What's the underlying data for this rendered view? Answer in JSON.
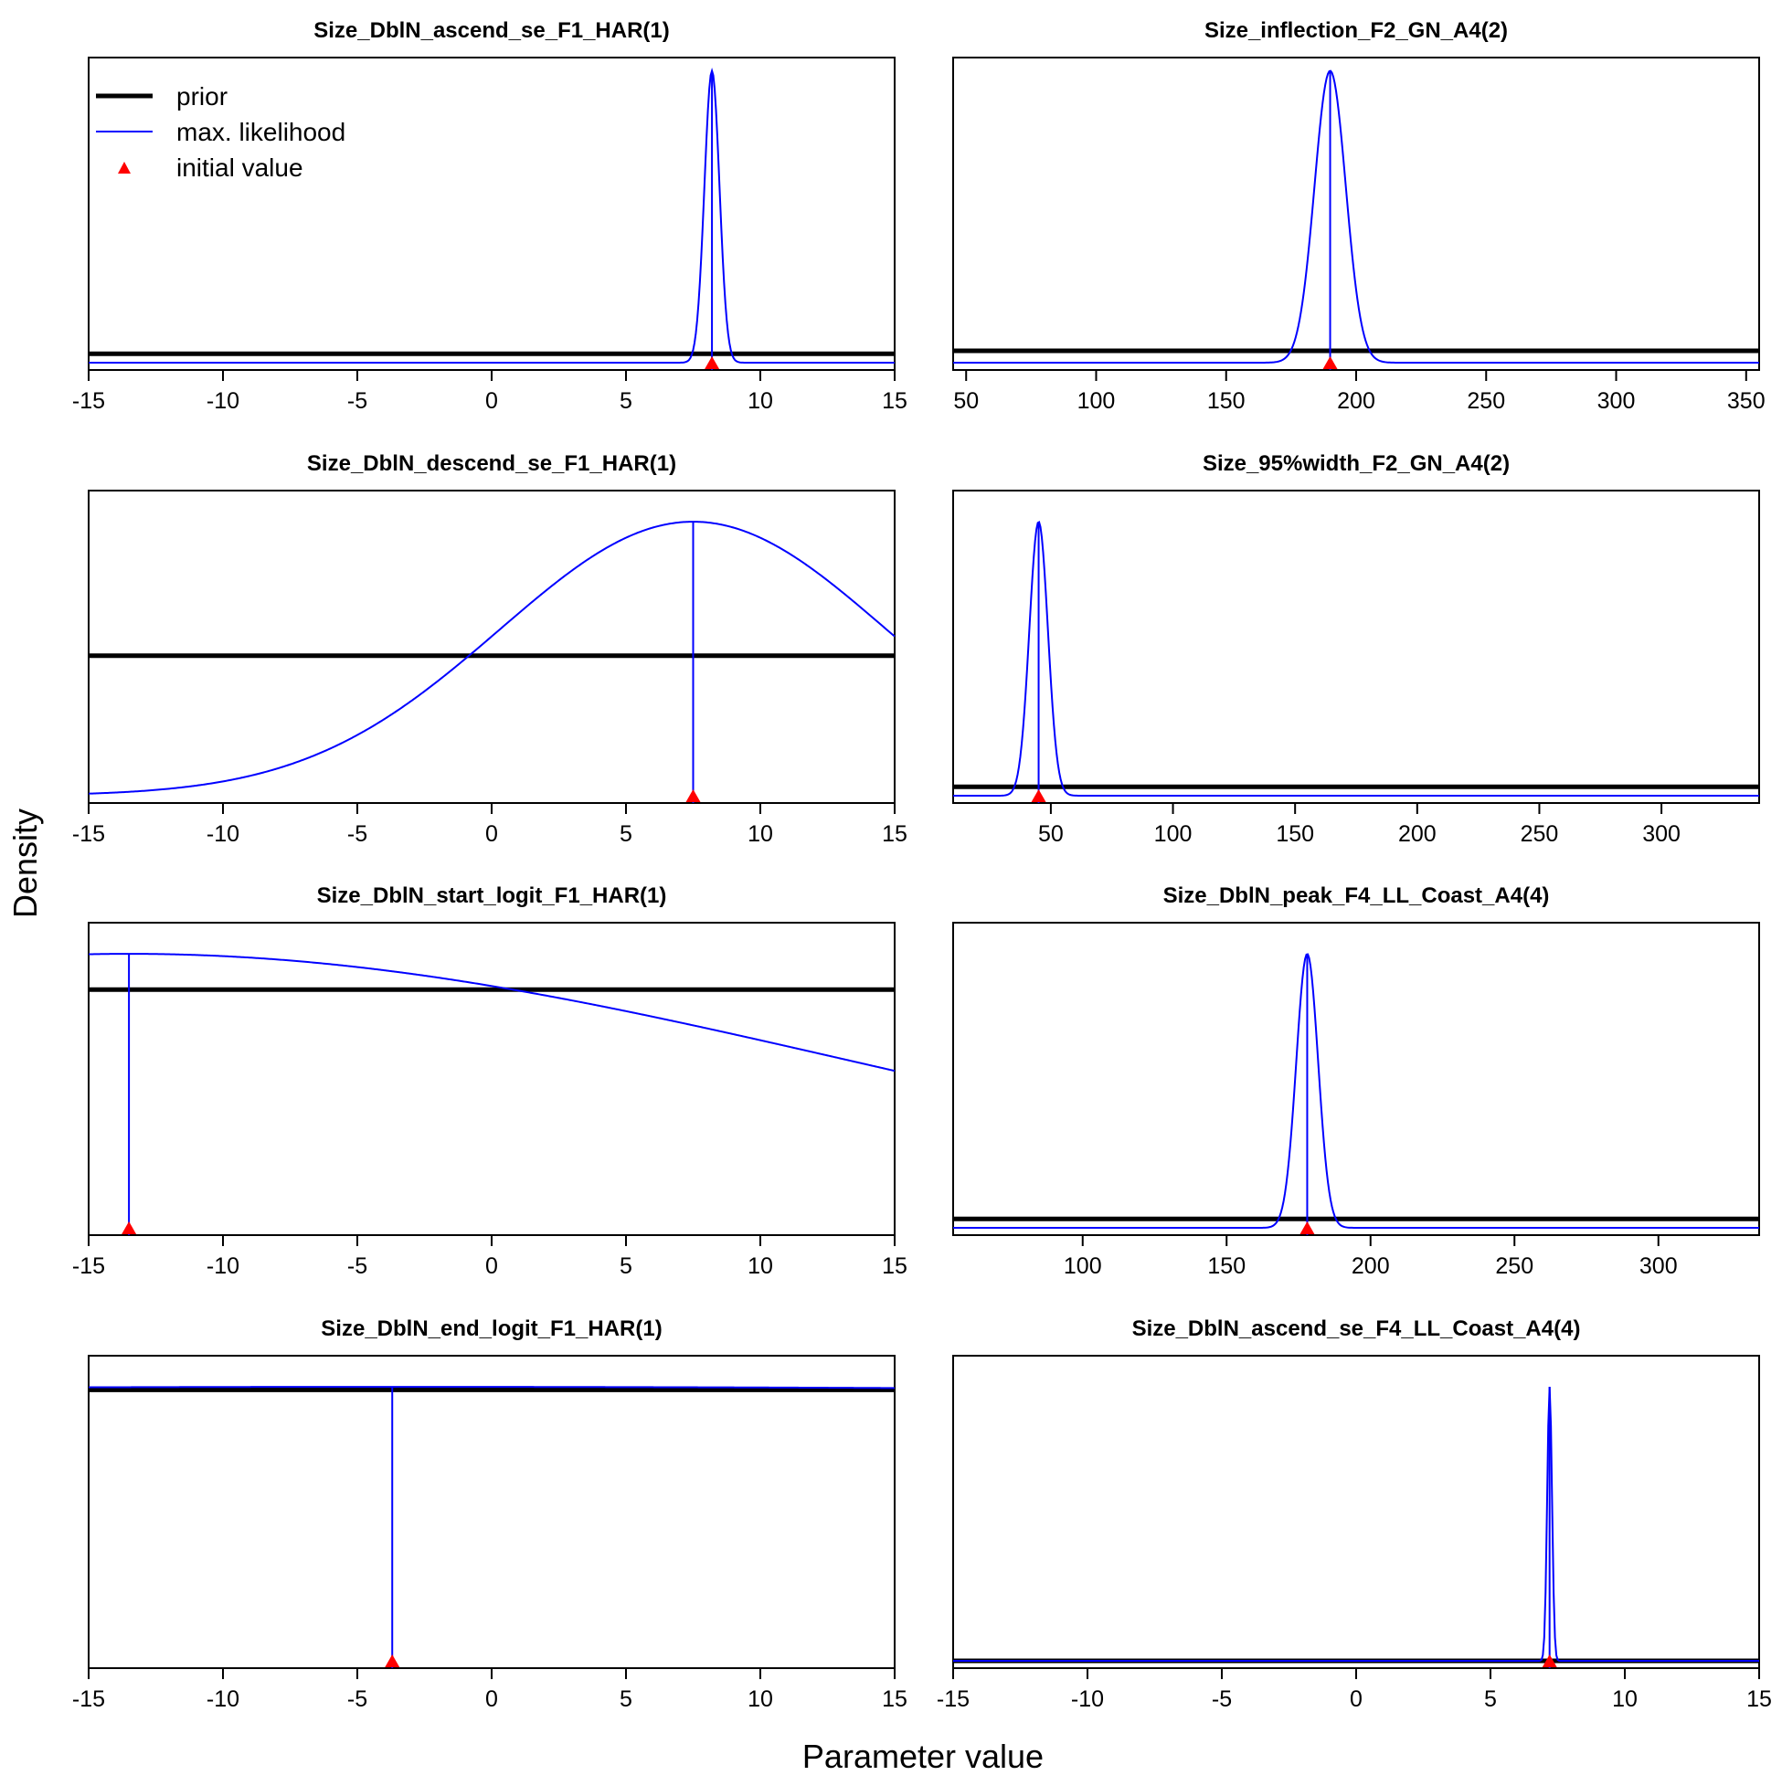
{
  "figure": {
    "xlabel": "Parameter value",
    "ylabel": "Density"
  },
  "legend": {
    "placement": "top-left of first panel",
    "items": [
      {
        "label": "prior",
        "kind": "line",
        "color": "#000000"
      },
      {
        "label": "max. likelihood",
        "kind": "line",
        "color": "#0000ff"
      },
      {
        "label": "initial value",
        "kind": "triangle",
        "color": "#ff0000"
      }
    ]
  },
  "colors": {
    "prior": "#000000",
    "mle": "#0000ff",
    "initial": "#ff0000",
    "axis": "#000000"
  },
  "chart_data": [
    {
      "type": "line",
      "title": "Size_DblN_ascend_se_F1_HAR(1)",
      "xlim": [
        -15,
        15
      ],
      "xticks": [
        -15,
        -10,
        -5,
        0,
        5,
        10,
        15
      ],
      "tick_labels": [
        "-15",
        "-10",
        "-5",
        "0",
        "5",
        "10",
        "15"
      ],
      "prior": {
        "shape": "flat",
        "level": 0.03
      },
      "mle": {
        "shape": "normal",
        "mean": 8.2,
        "sd": 0.28,
        "peak": 0.98
      },
      "initial_value": 8.2
    },
    {
      "type": "line",
      "title": "Size_inflection_F2_GN_A4(2)",
      "xlim": [
        45,
        355
      ],
      "xticks": [
        50,
        100,
        150,
        200,
        250,
        300,
        350
      ],
      "tick_labels": [
        "50",
        "100",
        "150",
        "200",
        "250",
        "300",
        "350"
      ],
      "prior": {
        "shape": "flat",
        "level": 0.04
      },
      "mle": {
        "shape": "normal",
        "mean": 190,
        "sd": 6,
        "peak": 0.98
      },
      "initial_value": 190
    },
    {
      "type": "line",
      "title": "Size_DblN_descend_se_F1_HAR(1)",
      "xlim": [
        -15,
        15
      ],
      "xticks": [
        -15,
        -10,
        -5,
        0,
        5,
        10,
        15
      ],
      "tick_labels": [
        "-15",
        "-10",
        "-5",
        "0",
        "5",
        "10",
        "15"
      ],
      "prior": {
        "shape": "flat",
        "level": 0.47
      },
      "mle": {
        "shape": "normal",
        "mean": 7.5,
        "sd": 7.2,
        "peak": 0.92
      },
      "initial_value": 7.5
    },
    {
      "type": "line",
      "title": "Size_95%width_F2_GN_A4(2)",
      "xlim": [
        10,
        340
      ],
      "xticks": [
        50,
        100,
        150,
        200,
        250,
        300
      ],
      "tick_labels": [
        "50",
        "100",
        "150",
        "200",
        "250",
        "300"
      ],
      "prior": {
        "shape": "flat",
        "level": 0.03
      },
      "mle": {
        "shape": "normal",
        "mean": 45,
        "sd": 3.8,
        "peak": 0.92
      },
      "initial_value": 45
    },
    {
      "type": "line",
      "title": "Size_DblN_start_logit_F1_HAR(1)",
      "xlim": [
        -15,
        15
      ],
      "xticks": [
        -15,
        -10,
        -5,
        0,
        5,
        10,
        15
      ],
      "tick_labels": [
        "-15",
        "-10",
        "-5",
        "0",
        "5",
        "10",
        "15"
      ],
      "prior": {
        "shape": "flat",
        "level": 0.8
      },
      "mle": {
        "shape": "normal",
        "mean": -13.5,
        "sd": 27,
        "peak": 0.92
      },
      "initial_value": -13.5
    },
    {
      "type": "line",
      "title": "Size_DblN_peak_F4_LL_Coast_A4(4)",
      "xlim": [
        55,
        335
      ],
      "xticks": [
        100,
        150,
        200,
        250,
        300
      ],
      "tick_labels": [
        "100",
        "150",
        "200",
        "250",
        "300"
      ],
      "prior": {
        "shape": "flat",
        "level": 0.03
      },
      "mle": {
        "shape": "normal",
        "mean": 178,
        "sd": 3.8,
        "peak": 0.92
      },
      "initial_value": 178
    },
    {
      "type": "line",
      "title": "Size_DblN_end_logit_F1_HAR(1)",
      "xlim": [
        -15,
        15
      ],
      "xticks": [
        -15,
        -10,
        -5,
        0,
        5,
        10,
        15
      ],
      "tick_labels": [
        "-15",
        "-10",
        "-5",
        "0",
        "5",
        "10",
        "15"
      ],
      "prior": {
        "shape": "flat",
        "level": 0.91
      },
      "mle": {
        "shape": "normal",
        "mean": -3.7,
        "sd": 200,
        "peak": 0.92
      },
      "initial_value": -3.7
    },
    {
      "type": "line",
      "title": "Size_DblN_ascend_se_F4_LL_Coast_A4(4)",
      "xlim": [
        -15,
        15
      ],
      "xticks": [
        -15,
        -10,
        -5,
        0,
        5,
        10,
        15
      ],
      "tick_labels": [
        "-15",
        "-10",
        "-5",
        "0",
        "5",
        "10",
        "15"
      ],
      "prior": {
        "shape": "flat",
        "level": 0.0
      },
      "mle": {
        "shape": "normal",
        "mean": 7.2,
        "sd": 0.09,
        "peak": 0.92
      },
      "initial_value": 7.2
    }
  ]
}
